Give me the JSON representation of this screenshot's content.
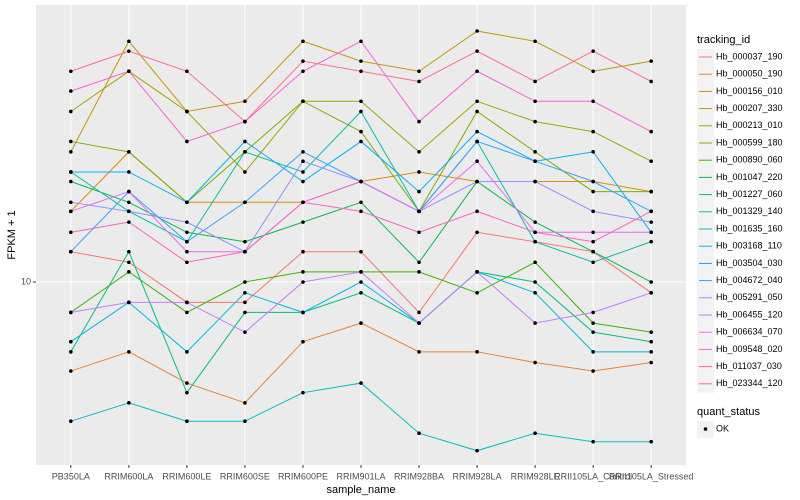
{
  "chart_data": {
    "type": "line",
    "x_label": "sample_name",
    "y_label": "FPKM + 1",
    "categories": [
      "PB350LA",
      "RRIM600LA",
      "RRIM600LE",
      "RRIM600SE",
      "RRIM600PE",
      "RRIM901LA",
      "RRIM928BA",
      "RRIM928LA",
      "RRIM928LE",
      "RRII105LA_Control",
      "RRII105LA_Stressed"
    ],
    "log_y": true,
    "ylim": [
      3.5,
      49
    ],
    "yticks": [
      10
    ],
    "grid": true,
    "legend_title": "tracking_id",
    "legend_position": "right",
    "point_legend": {
      "title": "quant_status",
      "labels": [
        "OK"
      ],
      "color": "#000000"
    },
    "series": [
      {
        "name": "Hb_000037_190",
        "color": "#F8766D",
        "values": [
          11.9,
          11.2,
          8.9,
          8.9,
          11.9,
          11.9,
          8.4,
          13.3,
          12.6,
          11.9,
          9.4
        ]
      },
      {
        "name": "Hb_000050_190",
        "color": "#EA8331",
        "values": [
          6.0,
          6.7,
          5.6,
          5.0,
          7.1,
          7.9,
          6.7,
          6.7,
          6.3,
          6.0,
          6.3
        ]
      },
      {
        "name": "Hb_000156_010",
        "color": "#D89000",
        "values": [
          15.0,
          21.1,
          15.8,
          15.8,
          15.8,
          17.8,
          18.8,
          17.8,
          17.8,
          17.8,
          16.8
        ]
      },
      {
        "name": "Hb_000207_330",
        "color": "#C09B00",
        "values": [
          21.1,
          39.8,
          26.6,
          28.2,
          39.8,
          35.5,
          33.5,
          42.2,
          39.8,
          33.5,
          35.5
        ]
      },
      {
        "name": "Hb_000213_010",
        "color": "#A3A500",
        "values": [
          26.6,
          33.5,
          26.6,
          18.8,
          28.2,
          28.2,
          21.1,
          28.2,
          25.1,
          23.7,
          20.0
        ]
      },
      {
        "name": "Hb_000599_180",
        "color": "#7CAE00",
        "values": [
          22.4,
          21.1,
          15.8,
          21.1,
          28.2,
          23.7,
          15.0,
          26.6,
          21.1,
          16.8,
          16.8
        ]
      },
      {
        "name": "Hb_000890_060",
        "color": "#39B600",
        "values": [
          8.4,
          10.6,
          8.4,
          10.0,
          10.6,
          10.6,
          10.6,
          9.4,
          11.2,
          7.9,
          7.5
        ]
      },
      {
        "name": "Hb_001047_220",
        "color": "#00BB4E",
        "values": [
          17.8,
          15.8,
          13.3,
          12.6,
          14.1,
          15.8,
          11.2,
          17.8,
          14.1,
          11.9,
          10.0
        ]
      },
      {
        "name": "Hb_001227_060",
        "color": "#00BF7D",
        "values": [
          6.7,
          11.9,
          5.3,
          8.4,
          8.4,
          9.4,
          7.9,
          10.6,
          10.0,
          7.5,
          7.1
        ]
      },
      {
        "name": "Hb_001329_140",
        "color": "#00C1A3",
        "values": [
          18.8,
          15.0,
          12.6,
          21.1,
          18.8,
          26.6,
          15.0,
          22.4,
          12.6,
          11.2,
          12.6
        ]
      },
      {
        "name": "Hb_001635_160",
        "color": "#00BFC4",
        "values": [
          4.5,
          5.0,
          4.5,
          4.5,
          5.3,
          5.6,
          4.2,
          3.8,
          4.2,
          4.0,
          4.0
        ]
      },
      {
        "name": "Hb_003168_110",
        "color": "#00BAE0",
        "values": [
          7.1,
          8.9,
          6.7,
          9.4,
          8.4,
          10.0,
          7.9,
          10.6,
          9.4,
          6.7,
          6.7
        ]
      },
      {
        "name": "Hb_003504_030",
        "color": "#00B0F6",
        "values": [
          18.8,
          18.8,
          15.8,
          22.4,
          17.8,
          22.4,
          16.8,
          23.7,
          20.0,
          21.1,
          13.3
        ]
      },
      {
        "name": "Hb_004672_040",
        "color": "#35A2FF",
        "values": [
          11.9,
          16.8,
          12.6,
          15.8,
          21.1,
          17.8,
          15.0,
          22.4,
          20.0,
          17.8,
          15.0
        ]
      },
      {
        "name": "Hb_005291_050",
        "color": "#9590FF",
        "values": [
          15.8,
          15.0,
          14.1,
          11.9,
          20.0,
          17.8,
          15.0,
          17.8,
          17.8,
          15.0,
          14.1
        ]
      },
      {
        "name": "Hb_006455_120",
        "color": "#C77CFF",
        "values": [
          8.4,
          8.9,
          8.9,
          7.5,
          10.0,
          10.6,
          7.9,
          10.6,
          7.9,
          8.4,
          9.4
        ]
      },
      {
        "name": "Hb_006634_070",
        "color": "#E76BF3",
        "values": [
          15.0,
          16.8,
          11.9,
          11.9,
          15.8,
          17.8,
          15.0,
          20.0,
          13.3,
          13.3,
          13.3
        ]
      },
      {
        "name": "Hb_009548_020",
        "color": "#FA62DB",
        "values": [
          29.9,
          33.5,
          22.4,
          25.1,
          33.5,
          39.8,
          25.1,
          33.5,
          28.2,
          28.2,
          23.7
        ]
      },
      {
        "name": "Hb_011037_030",
        "color": "#FF62BC",
        "values": [
          13.3,
          14.1,
          11.2,
          11.9,
          15.8,
          15.0,
          13.3,
          15.0,
          13.3,
          12.6,
          15.0
        ]
      },
      {
        "name": "Hb_023344_120",
        "color": "#FF6C91",
        "values": [
          33.5,
          37.6,
          33.5,
          25.1,
          35.5,
          33.5,
          31.6,
          37.6,
          31.6,
          37.6,
          31.6
        ]
      }
    ]
  }
}
